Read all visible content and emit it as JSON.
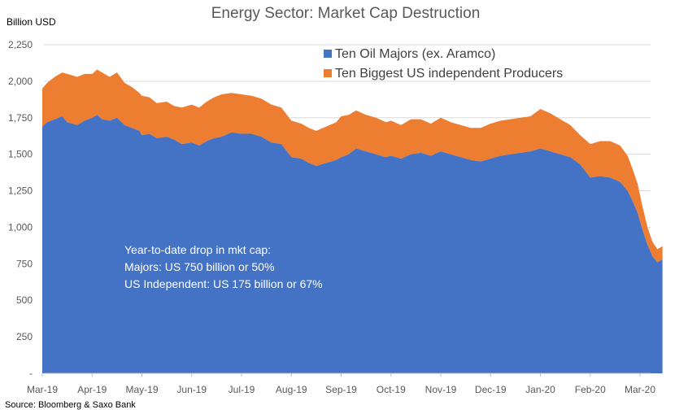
{
  "chart_data": {
    "type": "area",
    "stacked": true,
    "title": "Energy Sector: Market Cap Destruction",
    "ylabel": "Billion  USD",
    "ylim": [
      0,
      2250
    ],
    "yticks": [
      0,
      250,
      500,
      750,
      1000,
      1250,
      1500,
      1750,
      2000,
      2250
    ],
    "ytick_labels": [
      "-",
      "250",
      "500",
      "750",
      "1,000",
      "1,250",
      "1,500",
      "1,750",
      "2,000",
      "2,250"
    ],
    "xtick_labels": [
      "Mar-19",
      "Apr-19",
      "May-19",
      "Jun-19",
      "Jul-19",
      "Aug-19",
      "Sep-19",
      "Oct-19",
      "Nov-19",
      "Dec-19",
      "Jan-20",
      "Feb-20",
      "Mar-20"
    ],
    "x_month_index": [
      0,
      0.1,
      0.25,
      0.4,
      0.5,
      0.7,
      0.85,
      1.0,
      1.1,
      1.2,
      1.35,
      1.5,
      1.65,
      1.8,
      1.95,
      2.0,
      2.15,
      2.3,
      2.5,
      2.65,
      2.8,
      3.0,
      3.15,
      3.3,
      3.45,
      3.6,
      3.8,
      4.0,
      4.2,
      4.4,
      4.6,
      4.8,
      5.0,
      5.2,
      5.35,
      5.5,
      5.7,
      5.9,
      6.0,
      6.15,
      6.3,
      6.5,
      6.7,
      6.9,
      7.0,
      7.2,
      7.4,
      7.6,
      7.8,
      8.0,
      8.2,
      8.4,
      8.6,
      8.8,
      9.0,
      9.2,
      9.4,
      9.6,
      9.8,
      10.0,
      10.2,
      10.4,
      10.6,
      10.8,
      11.0,
      11.2,
      11.4,
      11.6,
      11.75,
      11.85,
      11.95,
      12.05,
      12.15,
      12.25,
      12.35,
      12.45
    ],
    "series": [
      {
        "name": "Ten Oil Majors (ex. Aramco)",
        "color": "#4472C4",
        "values": [
          1690,
          1720,
          1740,
          1760,
          1720,
          1700,
          1730,
          1750,
          1770,
          1740,
          1730,
          1750,
          1700,
          1680,
          1660,
          1630,
          1640,
          1610,
          1620,
          1600,
          1570,
          1580,
          1560,
          1590,
          1610,
          1620,
          1650,
          1640,
          1640,
          1620,
          1580,
          1570,
          1480,
          1470,
          1440,
          1420,
          1440,
          1460,
          1480,
          1500,
          1540,
          1520,
          1500,
          1480,
          1490,
          1470,
          1500,
          1510,
          1490,
          1520,
          1500,
          1480,
          1460,
          1450,
          1470,
          1490,
          1500,
          1510,
          1520,
          1540,
          1520,
          1500,
          1480,
          1430,
          1340,
          1350,
          1340,
          1310,
          1250,
          1180,
          1100,
          980,
          880,
          800,
          760,
          780
        ]
      },
      {
        "name": "Ten Biggest US independent Producers",
        "color": "#ED7D31",
        "values": [
          260,
          270,
          290,
          300,
          330,
          330,
          320,
          300,
          310,
          320,
          300,
          310,
          290,
          280,
          260,
          270,
          250,
          240,
          240,
          230,
          250,
          260,
          260,
          270,
          280,
          290,
          270,
          270,
          260,
          260,
          260,
          250,
          250,
          240,
          240,
          240,
          250,
          260,
          280,
          270,
          260,
          250,
          250,
          240,
          240,
          230,
          240,
          230,
          220,
          230,
          220,
          220,
          220,
          230,
          240,
          240,
          240,
          240,
          240,
          270,
          260,
          240,
          220,
          200,
          230,
          240,
          250,
          250,
          240,
          220,
          200,
          160,
          120,
          100,
          90,
          90
        ]
      }
    ],
    "legend": [
      "Ten Oil Majors (ex. Aramco)",
      "Ten Biggest US independent Producers"
    ],
    "legend_position": "top-right",
    "annotation": [
      "Year-to-date drop in mkt cap:",
      "Majors: US 750 billion or 50%",
      "US Independent: US 175 billion or 67%"
    ],
    "source": "Source: Bloomberg & Saxo Bank"
  }
}
